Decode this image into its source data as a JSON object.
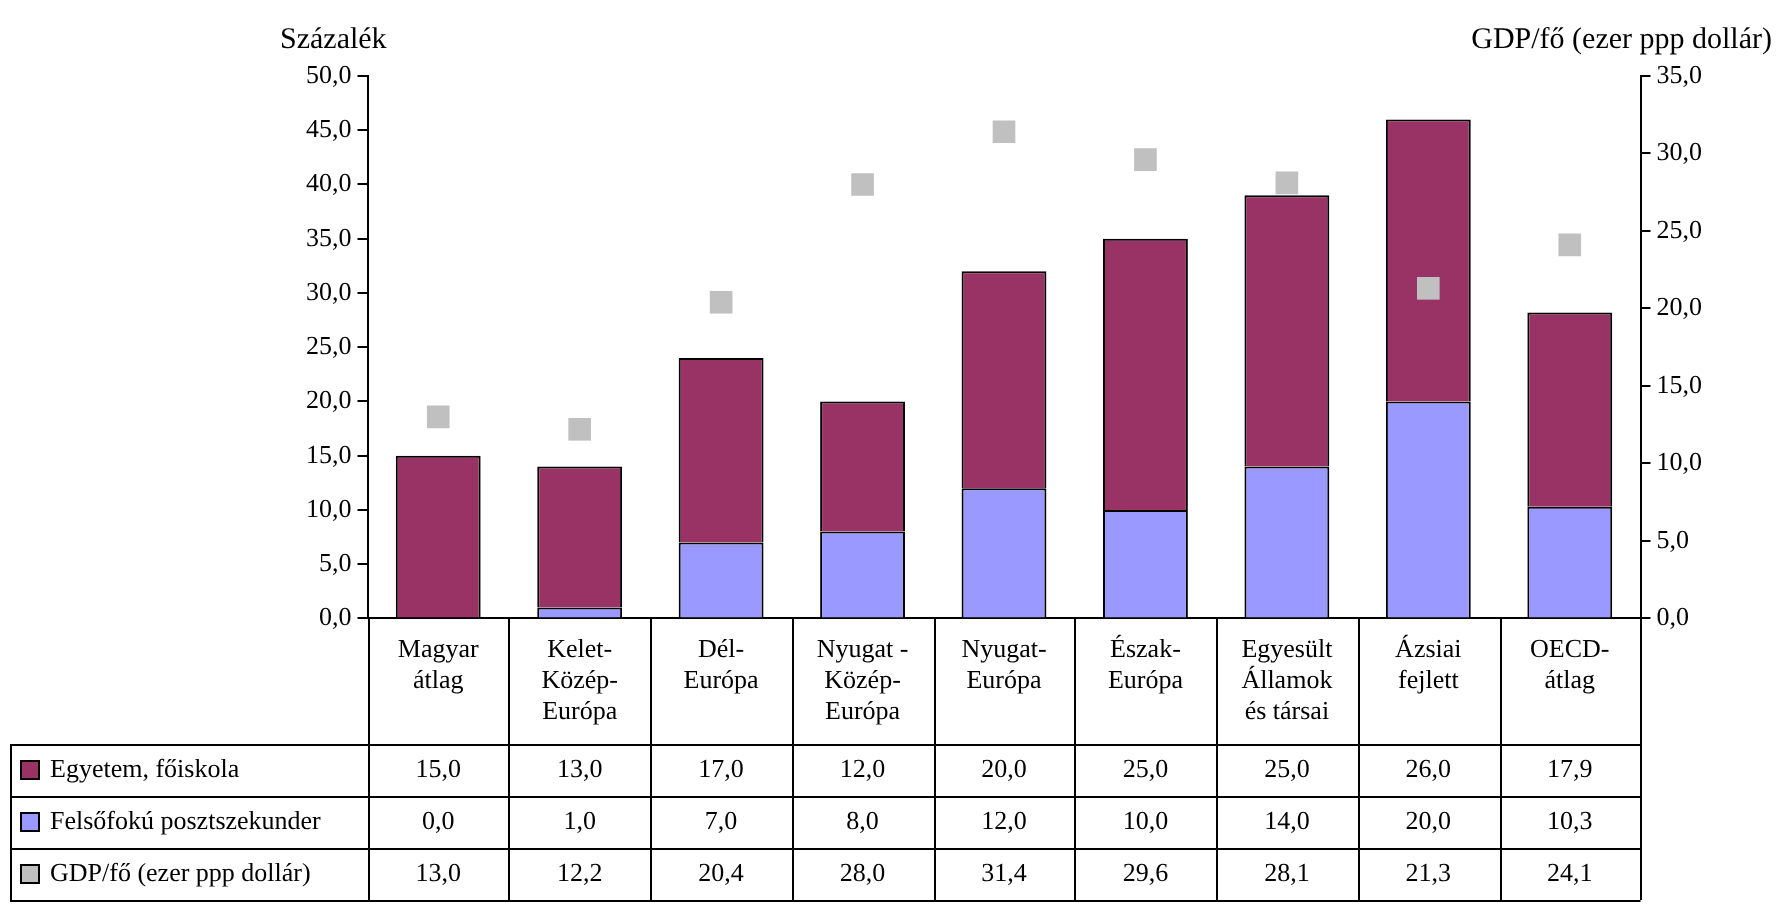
{
  "chart_data": {
    "type": "bar",
    "stacked": true,
    "ylabel": "Százalék",
    "y2label": "GDP/fő (ezer ppp dollár)",
    "categories": [
      "Magyar átlag",
      "Kelet-Közép-Európa",
      "Dél-Európa",
      "Nyugat - Közép-Európa",
      "Nyugat-Európa",
      "Észak-Európa",
      "Egyesült Államok és társai",
      "Ázsiai fejlett",
      "OECD-átlag"
    ],
    "series": [
      {
        "name": "Felsőfokú posztszekunder",
        "color": "#9999ff",
        "values": [
          0.0,
          1.0,
          7.0,
          8.0,
          12.0,
          10.0,
          14.0,
          20.0,
          10.3
        ],
        "value_labels": [
          "0,0",
          "1,0",
          "7,0",
          "8,0",
          "12,0",
          "10,0",
          "14,0",
          "20,0",
          "10,3"
        ]
      },
      {
        "name": "Egyetem, főiskola",
        "color": "#993366",
        "values": [
          15.0,
          13.0,
          17.0,
          12.0,
          20.0,
          25.0,
          25.0,
          26.0,
          17.9
        ],
        "value_labels": [
          "15,0",
          "13,0",
          "17,0",
          "12,0",
          "20,0",
          "25,0",
          "25,0",
          "26,0",
          "17,9"
        ]
      },
      {
        "name": "GDP/fő (ezer ppp dollár)",
        "type": "scatter",
        "axis": "y2",
        "marker": "square",
        "color": "#c0c0c0",
        "values": [
          13.0,
          12.2,
          20.4,
          28.0,
          31.4,
          29.6,
          28.1,
          21.3,
          24.1
        ],
        "value_labels": [
          "13,0",
          "12,2",
          "20,4",
          "28,0",
          "31,4",
          "29,6",
          "28,1",
          "21,3",
          "24,1"
        ]
      }
    ],
    "ylim": [
      0,
      50
    ],
    "yticks": [
      {
        "value": 0,
        "label": "0,0"
      },
      {
        "value": 5,
        "label": "5,0"
      },
      {
        "value": 10,
        "label": "10,0"
      },
      {
        "value": 15,
        "label": "15,0"
      },
      {
        "value": 20,
        "label": "20,0"
      },
      {
        "value": 25,
        "label": "25,0"
      },
      {
        "value": 30,
        "label": "30,0"
      },
      {
        "value": 35,
        "label": "35,0"
      },
      {
        "value": 40,
        "label": "40,0"
      },
      {
        "value": 45,
        "label": "45,0"
      },
      {
        "value": 50,
        "label": "50,0"
      }
    ],
    "y2lim": [
      0,
      35
    ],
    "y2ticks": [
      {
        "value": 0,
        "label": "0,0"
      },
      {
        "value": 5,
        "label": "5,0"
      },
      {
        "value": 10,
        "label": "10,0"
      },
      {
        "value": 15,
        "label": "15,0"
      },
      {
        "value": 20,
        "label": "20,0"
      },
      {
        "value": 25,
        "label": "25,0"
      },
      {
        "value": 30,
        "label": "30,0"
      },
      {
        "value": 35,
        "label": "35,0"
      }
    ],
    "grid": false,
    "legend": "bottom"
  }
}
